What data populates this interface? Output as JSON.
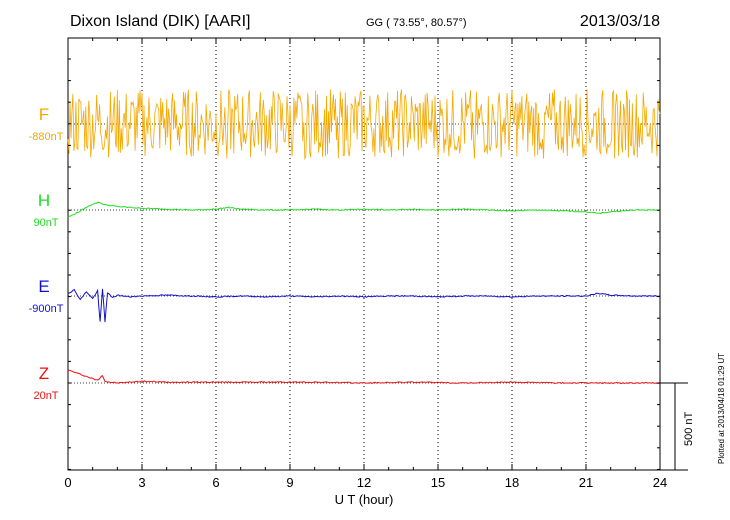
{
  "header": {
    "title": "Dixon Island (DIK)  [AARI]",
    "coords": "GG ( 73.55°,  80.57°)",
    "date": "2013/03/18"
  },
  "side_note": "Plotted at 2013/04/18 01:29 UT",
  "scale_bar": {
    "label": "500 nT",
    "value_nT": 500
  },
  "colors": {
    "F": "#f5a800",
    "H": "#22dd22",
    "E": "#1111cc",
    "Z": "#ee1111",
    "axes": "#000000",
    "grid": "#000000"
  },
  "chart_data": {
    "type": "line",
    "title": "Dixon Island (DIK)  [AARI]",
    "xlabel": "U T (hour)",
    "ylabel": "",
    "xlim": [
      0,
      24
    ],
    "x_ticks": [
      "0",
      "3",
      "6",
      "9",
      "12",
      "15",
      "18",
      "21",
      "24"
    ],
    "vertical_grid": true,
    "units": "nT",
    "scale_nT_per_bar": 500,
    "series": [
      {
        "name": "F",
        "baseline_label": "-880nT",
        "baseline_nT": -880,
        "x": [
          0,
          0.5,
          1,
          1.5,
          2,
          2.5,
          3,
          3.5,
          4,
          4.5,
          5,
          5.5,
          6,
          6.5,
          7,
          7.5,
          8,
          8.5,
          9,
          9.5,
          10,
          10.5,
          11,
          11.5,
          12,
          12.5,
          13,
          13.5,
          14,
          14.5,
          15,
          15.5,
          16,
          16.5,
          17,
          17.5,
          18,
          18.5,
          19,
          19.5,
          20,
          20.5,
          21,
          21.5,
          22,
          22.5,
          23,
          23.5,
          24
        ],
        "y": [
          150,
          -150,
          160,
          -220,
          120,
          -40,
          180,
          -160,
          140,
          -120,
          170,
          -90,
          200,
          -60,
          140,
          -130,
          190,
          -100,
          150,
          -80,
          160,
          -110,
          170,
          -90,
          180,
          -120,
          160,
          -70,
          150,
          -100,
          190,
          -110,
          140,
          -150,
          170,
          -80,
          160,
          -100,
          180,
          -120,
          150,
          -90,
          170,
          -150,
          160,
          -80,
          180,
          -60,
          150
        ]
      },
      {
        "name": "H",
        "baseline_label": "90nT",
        "baseline_nT": 90,
        "x": [
          0,
          0.25,
          0.5,
          0.75,
          1,
          1.25,
          1.5,
          2,
          2.5,
          3,
          4,
          5,
          6,
          6.5,
          7,
          8,
          9,
          10,
          11,
          12,
          13,
          14,
          15,
          16,
          17,
          18,
          19,
          20,
          21,
          21.5,
          22,
          23,
          24
        ],
        "y": [
          -40,
          -25,
          -5,
          15,
          35,
          45,
          30,
          20,
          15,
          10,
          5,
          0,
          5,
          15,
          5,
          0,
          0,
          5,
          0,
          5,
          0,
          5,
          0,
          5,
          0,
          -5,
          0,
          -5,
          -10,
          -20,
          -10,
          0,
          0
        ]
      },
      {
        "name": "E",
        "baseline_label": "-900nT",
        "baseline_nT": -900,
        "x": [
          0,
          0.25,
          0.5,
          0.75,
          1,
          1.2,
          1.3,
          1.4,
          1.5,
          1.6,
          1.8,
          2,
          2.5,
          3,
          4,
          5,
          6,
          7,
          8,
          9,
          10,
          11,
          12,
          13,
          14,
          15,
          16,
          17,
          18,
          19,
          20,
          21,
          21.5,
          22,
          23,
          24
        ],
        "y": [
          15,
          35,
          -20,
          25,
          -15,
          30,
          -150,
          40,
          -150,
          20,
          -10,
          5,
          -5,
          0,
          5,
          0,
          -5,
          0,
          -5,
          0,
          -5,
          0,
          -5,
          0,
          0,
          -5,
          0,
          0,
          -5,
          0,
          0,
          0,
          15,
          5,
          0,
          0
        ]
      },
      {
        "name": "Z",
        "baseline_label": "20nT",
        "baseline_nT": 20,
        "x": [
          0,
          0.2,
          0.4,
          0.6,
          0.8,
          1,
          1.2,
          1.4,
          1.5,
          1.7,
          2,
          2.5,
          3,
          4,
          5,
          6,
          8,
          10,
          12,
          14,
          16,
          18,
          20,
          21,
          22,
          24
        ],
        "y": [
          75,
          65,
          55,
          45,
          35,
          25,
          15,
          45,
          10,
          5,
          0,
          5,
          10,
          5,
          5,
          5,
          5,
          5,
          0,
          5,
          0,
          5,
          0,
          0,
          0,
          0
        ]
      }
    ]
  }
}
